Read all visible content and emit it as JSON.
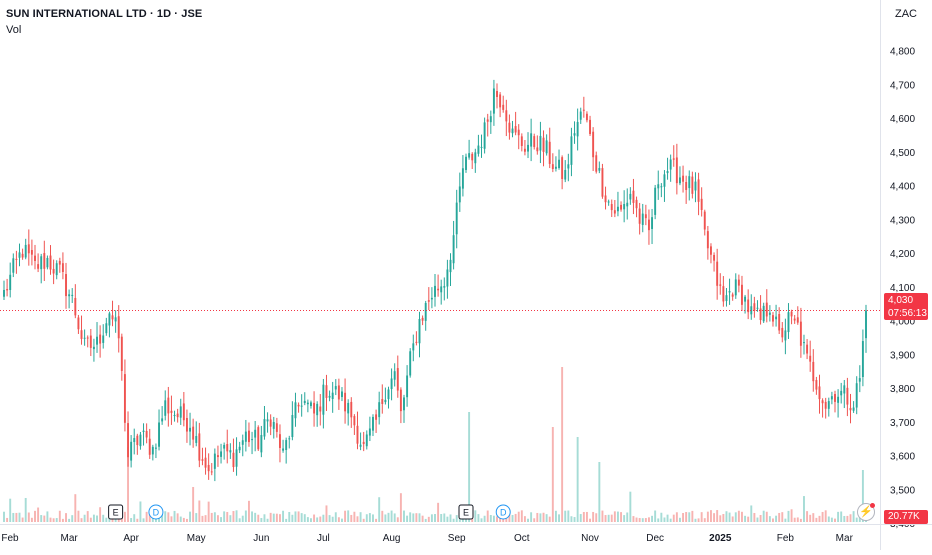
{
  "header": {
    "title": "SUN INTERNATIONAL LTD · 1D · JSE",
    "volume_label": "Vol",
    "currency": "ZAC"
  },
  "last_price": {
    "value": "4,030",
    "countdown": "07:56:13"
  },
  "last_volume": {
    "value": "20.77K"
  },
  "colors": {
    "up": "#26a69a",
    "down": "#ef5350",
    "price_line": "#f23645",
    "vol_up": "#a6dcd6",
    "vol_down": "#f7b3b1"
  },
  "events": [
    {
      "label": "E",
      "date": "Mar",
      "kind": "earnings"
    },
    {
      "label": "D",
      "date": "Apr",
      "kind": "dividend"
    },
    {
      "label": "E",
      "date": "Sep",
      "kind": "earnings"
    },
    {
      "label": "D",
      "date": "Sep",
      "kind": "dividend"
    }
  ],
  "chart_data": {
    "type": "candlestick",
    "title": "SUN INTERNATIONAL LTD · 1D · JSE",
    "ylim": [
      3380,
      4920
    ],
    "y_ticks": [
      "3,400",
      "3,500",
      "3,600",
      "3,700",
      "3,800",
      "3,900",
      "4,000",
      "4,100",
      "4,200",
      "4,300",
      "4,400",
      "4,500",
      "4,600",
      "4,700",
      "4,800"
    ],
    "y_tick_values": [
      3400,
      3500,
      3600,
      3700,
      3800,
      3900,
      4000,
      4100,
      4200,
      4300,
      4400,
      4500,
      4600,
      4700,
      4800
    ],
    "x_ticks": [
      "Feb",
      "Mar",
      "Apr",
      "May",
      "Jun",
      "Jul",
      "Aug",
      "Sep",
      "Oct",
      "Nov",
      "Dec",
      "2025",
      "Feb",
      "Mar"
    ],
    "x_tick_index": [
      0,
      21,
      41,
      62,
      83,
      103,
      125,
      146,
      167,
      189,
      210,
      231,
      252,
      271
    ],
    "bar_count": 279,
    "last_price": 4030,
    "close_path": [
      [
        0,
        4080
      ],
      [
        3,
        4150
      ],
      [
        6,
        4210
      ],
      [
        10,
        4160
      ],
      [
        14,
        4180
      ],
      [
        18,
        4140
      ],
      [
        22,
        4060
      ],
      [
        26,
        3920
      ],
      [
        30,
        3930
      ],
      [
        34,
        4030
      ],
      [
        37,
        3950
      ],
      [
        40,
        3600
      ],
      [
        44,
        3660
      ],
      [
        48,
        3620
      ],
      [
        52,
        3750
      ],
      [
        56,
        3720
      ],
      [
        60,
        3700
      ],
      [
        63,
        3620
      ],
      [
        66,
        3560
      ],
      [
        70,
        3610
      ],
      [
        74,
        3600
      ],
      [
        78,
        3660
      ],
      [
        82,
        3640
      ],
      [
        86,
        3720
      ],
      [
        90,
        3600
      ],
      [
        93,
        3700
      ],
      [
        96,
        3770
      ],
      [
        100,
        3720
      ],
      [
        104,
        3800
      ],
      [
        108,
        3780
      ],
      [
        112,
        3720
      ],
      [
        116,
        3620
      ],
      [
        120,
        3700
      ],
      [
        123,
        3800
      ],
      [
        126,
        3840
      ],
      [
        128,
        3720
      ],
      [
        131,
        3880
      ],
      [
        134,
        4000
      ],
      [
        138,
        4080
      ],
      [
        142,
        4120
      ],
      [
        145,
        4250
      ],
      [
        148,
        4450
      ],
      [
        152,
        4500
      ],
      [
        155,
        4560
      ],
      [
        158,
        4680
      ],
      [
        161,
        4650
      ],
      [
        164,
        4550
      ],
      [
        168,
        4520
      ],
      [
        172,
        4530
      ],
      [
        175,
        4500
      ],
      [
        178,
        4450
      ],
      [
        181,
        4430
      ],
      [
        184,
        4570
      ],
      [
        187,
        4620
      ],
      [
        190,
        4500
      ],
      [
        193,
        4400
      ],
      [
        196,
        4330
      ],
      [
        199,
        4320
      ],
      [
        202,
        4380
      ],
      [
        205,
        4300
      ],
      [
        208,
        4260
      ],
      [
        211,
        4420
      ],
      [
        214,
        4450
      ],
      [
        217,
        4440
      ],
      [
        220,
        4410
      ],
      [
        223,
        4380
      ],
      [
        226,
        4250
      ],
      [
        229,
        4150
      ],
      [
        232,
        4050
      ],
      [
        235,
        4100
      ],
      [
        238,
        4080
      ],
      [
        241,
        4020
      ],
      [
        244,
        4000
      ],
      [
        247,
        4050
      ],
      [
        250,
        3950
      ],
      [
        253,
        4000
      ],
      [
        256,
        3980
      ],
      [
        259,
        3880
      ],
      [
        262,
        3820
      ],
      [
        265,
        3750
      ],
      [
        268,
        3790
      ],
      [
        271,
        3780
      ],
      [
        274,
        3760
      ],
      [
        276,
        3830
      ],
      [
        278,
        4030
      ]
    ]
  }
}
